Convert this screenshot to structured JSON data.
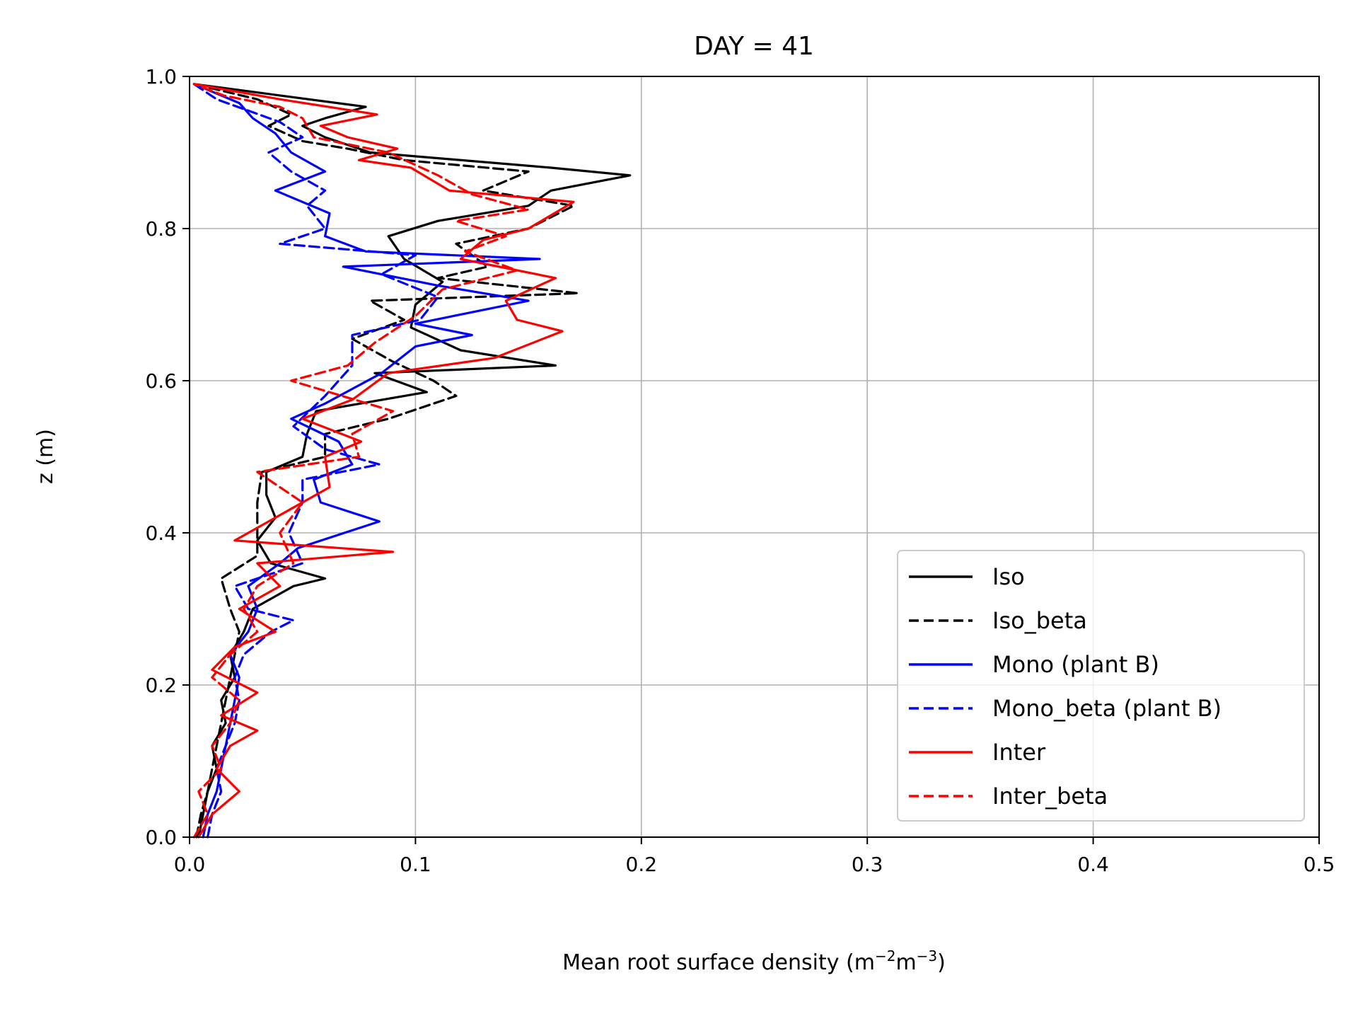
{
  "chart_data": {
    "type": "line",
    "title": "DAY = 41",
    "xlabel": "Mean root surface density (m",
    "xlabel_sup1": "−2",
    "xlabel_mid": "m",
    "xlabel_sup2": "−3",
    "xlabel_end": ")",
    "ylabel": "z (m)",
    "xlim": [
      0.0,
      0.5
    ],
    "ylim": [
      0.0,
      1.0
    ],
    "xticks": [
      "0.0",
      "0.1",
      "0.2",
      "0.3",
      "0.4",
      "0.5"
    ],
    "yticks": [
      "0.0",
      "0.2",
      "0.4",
      "0.6",
      "0.8",
      "1.0"
    ],
    "grid": true,
    "legend_position": "lower-right",
    "series": [
      {
        "name": "Iso",
        "color": "#000000",
        "dash": "solid",
        "points": [
          [
            0.004,
            0.0
          ],
          [
            0.006,
            0.03
          ],
          [
            0.008,
            0.06
          ],
          [
            0.012,
            0.09
          ],
          [
            0.01,
            0.12
          ],
          [
            0.016,
            0.15
          ],
          [
            0.014,
            0.18
          ],
          [
            0.02,
            0.21
          ],
          [
            0.018,
            0.24
          ],
          [
            0.024,
            0.27
          ],
          [
            0.028,
            0.3
          ],
          [
            0.046,
            0.33
          ],
          [
            0.06,
            0.34
          ],
          [
            0.036,
            0.36
          ],
          [
            0.03,
            0.39
          ],
          [
            0.038,
            0.42
          ],
          [
            0.034,
            0.45
          ],
          [
            0.034,
            0.48
          ],
          [
            0.05,
            0.5
          ],
          [
            0.052,
            0.53
          ],
          [
            0.056,
            0.56
          ],
          [
            0.105,
            0.585
          ],
          [
            0.082,
            0.61
          ],
          [
            0.162,
            0.62
          ],
          [
            0.12,
            0.64
          ],
          [
            0.098,
            0.67
          ],
          [
            0.1,
            0.7
          ],
          [
            0.112,
            0.73
          ],
          [
            0.095,
            0.76
          ],
          [
            0.088,
            0.79
          ],
          [
            0.11,
            0.81
          ],
          [
            0.15,
            0.83
          ],
          [
            0.16,
            0.85
          ],
          [
            0.195,
            0.87
          ],
          [
            0.16,
            0.88
          ],
          [
            0.08,
            0.9
          ],
          [
            0.06,
            0.92
          ],
          [
            0.05,
            0.935
          ],
          [
            0.06,
            0.945
          ],
          [
            0.078,
            0.96
          ],
          [
            0.04,
            0.975
          ],
          [
            0.002,
            0.99
          ]
        ]
      },
      {
        "name": "Iso_beta",
        "color": "#000000",
        "dash": "dashed",
        "points": [
          [
            0.003,
            0.0
          ],
          [
            0.005,
            0.03
          ],
          [
            0.008,
            0.06
          ],
          [
            0.01,
            0.09
          ],
          [
            0.012,
            0.12
          ],
          [
            0.014,
            0.15
          ],
          [
            0.016,
            0.18
          ],
          [
            0.018,
            0.21
          ],
          [
            0.02,
            0.24
          ],
          [
            0.022,
            0.27
          ],
          [
            0.018,
            0.3
          ],
          [
            0.014,
            0.34
          ],
          [
            0.03,
            0.37
          ],
          [
            0.03,
            0.4
          ],
          [
            0.03,
            0.44
          ],
          [
            0.032,
            0.48
          ],
          [
            0.06,
            0.5
          ],
          [
            0.06,
            0.53
          ],
          [
            0.088,
            0.55
          ],
          [
            0.118,
            0.58
          ],
          [
            0.108,
            0.6
          ],
          [
            0.09,
            0.625
          ],
          [
            0.072,
            0.655
          ],
          [
            0.095,
            0.68
          ],
          [
            0.08,
            0.705
          ],
          [
            0.172,
            0.715
          ],
          [
            0.11,
            0.735
          ],
          [
            0.132,
            0.75
          ],
          [
            0.118,
            0.78
          ],
          [
            0.15,
            0.8
          ],
          [
            0.17,
            0.83
          ],
          [
            0.13,
            0.85
          ],
          [
            0.15,
            0.875
          ],
          [
            0.095,
            0.89
          ],
          [
            0.07,
            0.905
          ],
          [
            0.05,
            0.915
          ],
          [
            0.035,
            0.935
          ],
          [
            0.045,
            0.95
          ],
          [
            0.03,
            0.97
          ],
          [
            0.002,
            0.99
          ]
        ]
      },
      {
        "name": "Mono (plant B)",
        "color": "#0000ff",
        "dash": "solid",
        "points": [
          [
            0.006,
            0.0
          ],
          [
            0.008,
            0.03
          ],
          [
            0.012,
            0.06
          ],
          [
            0.014,
            0.09
          ],
          [
            0.016,
            0.12
          ],
          [
            0.018,
            0.15
          ],
          [
            0.02,
            0.18
          ],
          [
            0.022,
            0.21
          ],
          [
            0.018,
            0.24
          ],
          [
            0.026,
            0.27
          ],
          [
            0.03,
            0.3
          ],
          [
            0.026,
            0.33
          ],
          [
            0.04,
            0.36
          ],
          [
            0.048,
            0.38
          ],
          [
            0.084,
            0.415
          ],
          [
            0.058,
            0.44
          ],
          [
            0.055,
            0.47
          ],
          [
            0.072,
            0.49
          ],
          [
            0.066,
            0.52
          ],
          [
            0.045,
            0.55
          ],
          [
            0.06,
            0.57
          ],
          [
            0.085,
            0.61
          ],
          [
            0.1,
            0.645
          ],
          [
            0.125,
            0.66
          ],
          [
            0.1,
            0.675
          ],
          [
            0.15,
            0.705
          ],
          [
            0.11,
            0.725
          ],
          [
            0.068,
            0.75
          ],
          [
            0.155,
            0.76
          ],
          [
            0.078,
            0.77
          ],
          [
            0.06,
            0.79
          ],
          [
            0.062,
            0.82
          ],
          [
            0.038,
            0.85
          ],
          [
            0.06,
            0.875
          ],
          [
            0.045,
            0.9
          ],
          [
            0.038,
            0.925
          ],
          [
            0.028,
            0.945
          ],
          [
            0.022,
            0.965
          ],
          [
            0.002,
            0.99
          ]
        ]
      },
      {
        "name": "Mono_beta (plant B)",
        "color": "#0000ff",
        "dash": "dashed",
        "points": [
          [
            0.008,
            0.0
          ],
          [
            0.01,
            0.03
          ],
          [
            0.014,
            0.06
          ],
          [
            0.012,
            0.09
          ],
          [
            0.016,
            0.12
          ],
          [
            0.02,
            0.15
          ],
          [
            0.022,
            0.18
          ],
          [
            0.02,
            0.21
          ],
          [
            0.024,
            0.24
          ],
          [
            0.036,
            0.27
          ],
          [
            0.046,
            0.285
          ],
          [
            0.026,
            0.3
          ],
          [
            0.02,
            0.33
          ],
          [
            0.05,
            0.36
          ],
          [
            0.044,
            0.4
          ],
          [
            0.05,
            0.44
          ],
          [
            0.05,
            0.47
          ],
          [
            0.084,
            0.49
          ],
          [
            0.06,
            0.51
          ],
          [
            0.046,
            0.54
          ],
          [
            0.06,
            0.58
          ],
          [
            0.072,
            0.62
          ],
          [
            0.072,
            0.66
          ],
          [
            0.102,
            0.68
          ],
          [
            0.11,
            0.71
          ],
          [
            0.085,
            0.74
          ],
          [
            0.1,
            0.765
          ],
          [
            0.04,
            0.78
          ],
          [
            0.06,
            0.8
          ],
          [
            0.052,
            0.83
          ],
          [
            0.06,
            0.85
          ],
          [
            0.045,
            0.875
          ],
          [
            0.035,
            0.9
          ],
          [
            0.05,
            0.92
          ],
          [
            0.04,
            0.94
          ],
          [
            0.012,
            0.97
          ],
          [
            0.002,
            0.99
          ]
        ]
      },
      {
        "name": "Inter",
        "color": "#ff0000",
        "dash": "solid",
        "points": [
          [
            0.004,
            0.0
          ],
          [
            0.01,
            0.03
          ],
          [
            0.022,
            0.06
          ],
          [
            0.012,
            0.09
          ],
          [
            0.018,
            0.12
          ],
          [
            0.03,
            0.14
          ],
          [
            0.014,
            0.16
          ],
          [
            0.03,
            0.19
          ],
          [
            0.01,
            0.22
          ],
          [
            0.02,
            0.25
          ],
          [
            0.038,
            0.27
          ],
          [
            0.022,
            0.3
          ],
          [
            0.04,
            0.33
          ],
          [
            0.03,
            0.36
          ],
          [
            0.09,
            0.375
          ],
          [
            0.02,
            0.39
          ],
          [
            0.044,
            0.43
          ],
          [
            0.062,
            0.46
          ],
          [
            0.06,
            0.5
          ],
          [
            0.076,
            0.52
          ],
          [
            0.05,
            0.55
          ],
          [
            0.072,
            0.575
          ],
          [
            0.088,
            0.61
          ],
          [
            0.135,
            0.63
          ],
          [
            0.165,
            0.665
          ],
          [
            0.145,
            0.68
          ],
          [
            0.14,
            0.705
          ],
          [
            0.162,
            0.735
          ],
          [
            0.12,
            0.76
          ],
          [
            0.13,
            0.785
          ],
          [
            0.15,
            0.8
          ],
          [
            0.17,
            0.835
          ],
          [
            0.115,
            0.85
          ],
          [
            0.098,
            0.88
          ],
          [
            0.075,
            0.89
          ],
          [
            0.092,
            0.905
          ],
          [
            0.07,
            0.92
          ],
          [
            0.058,
            0.935
          ],
          [
            0.083,
            0.95
          ],
          [
            0.04,
            0.97
          ],
          [
            0.002,
            0.99
          ]
        ]
      },
      {
        "name": "Inter_beta",
        "color": "#ff0000",
        "dash": "dashed",
        "points": [
          [
            0.002,
            0.0
          ],
          [
            0.008,
            0.03
          ],
          [
            0.004,
            0.06
          ],
          [
            0.014,
            0.09
          ],
          [
            0.01,
            0.12
          ],
          [
            0.018,
            0.15
          ],
          [
            0.022,
            0.18
          ],
          [
            0.01,
            0.21
          ],
          [
            0.018,
            0.24
          ],
          [
            0.03,
            0.27
          ],
          [
            0.024,
            0.3
          ],
          [
            0.03,
            0.33
          ],
          [
            0.046,
            0.36
          ],
          [
            0.04,
            0.4
          ],
          [
            0.05,
            0.44
          ],
          [
            0.03,
            0.48
          ],
          [
            0.075,
            0.5
          ],
          [
            0.072,
            0.53
          ],
          [
            0.09,
            0.56
          ],
          [
            0.045,
            0.6
          ],
          [
            0.07,
            0.62
          ],
          [
            0.082,
            0.65
          ],
          [
            0.1,
            0.685
          ],
          [
            0.112,
            0.72
          ],
          [
            0.145,
            0.745
          ],
          [
            0.122,
            0.77
          ],
          [
            0.14,
            0.79
          ],
          [
            0.118,
            0.81
          ],
          [
            0.15,
            0.825
          ],
          [
            0.125,
            0.845
          ],
          [
            0.11,
            0.87
          ],
          [
            0.088,
            0.9
          ],
          [
            0.055,
            0.92
          ],
          [
            0.05,
            0.945
          ],
          [
            0.04,
            0.96
          ],
          [
            0.015,
            0.975
          ],
          [
            0.002,
            0.99
          ]
        ]
      }
    ]
  }
}
